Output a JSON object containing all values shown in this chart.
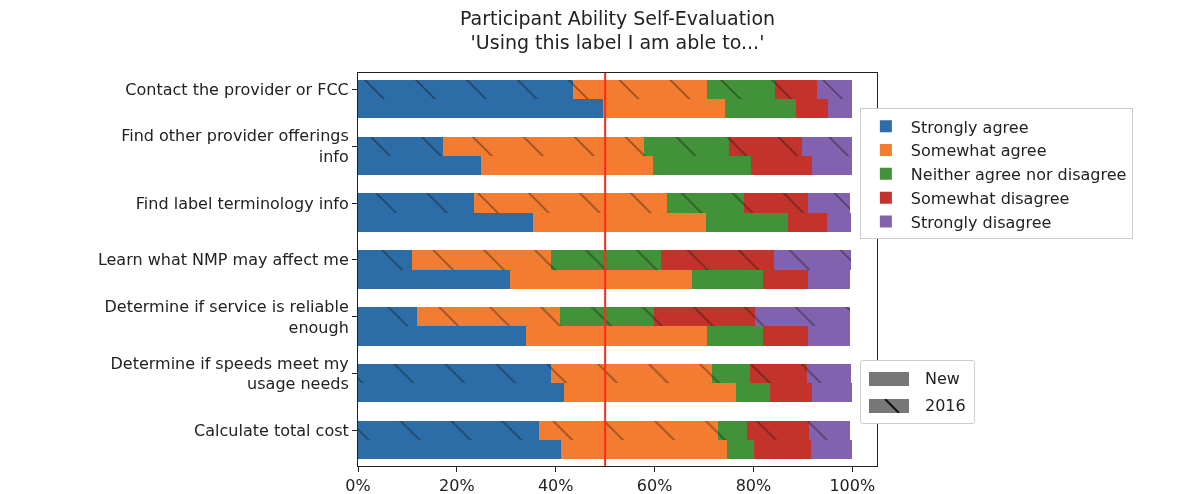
{
  "chart_data": {
    "type": "bar",
    "orientation": "horizontal",
    "stacked": true,
    "title": "Participant Ability Self-Evaluation\n'Using this label I am able to...'",
    "categories": [
      "Contact the provider or FCC",
      null,
      "Find other provider offerings info",
      null,
      "Find label terminology info",
      null,
      "Learn what NMP may affect me",
      null,
      "Determine if service is reliable enough",
      null,
      "Determine if speeds meet my usage needs",
      null,
      "Calculate total cost",
      null
    ],
    "series": [
      {
        "name": "Strongly agree",
        "color": "#2c6da7",
        "values": [
          null,
          49.5,
          null,
          24.9,
          null,
          35.4,
          null,
          30.8,
          null,
          34.0,
          null,
          41.7,
          null,
          41.1
        ]
      },
      {
        "name": "Somewhat agree",
        "color": "#f47c30",
        "values": [
          null,
          24.8,
          null,
          34.7,
          null,
          35.0,
          null,
          36.7,
          null,
          36.7,
          null,
          34.7,
          null,
          33.5
        ]
      },
      {
        "name": "Neither agree nor disagree",
        "color": "#419238",
        "values": [
          null,
          14.4,
          null,
          19.9,
          null,
          16.5,
          null,
          14.4,
          null,
          11.2,
          null,
          7.0,
          null,
          5.5
        ]
      },
      {
        "name": "Somewhat disagree",
        "color": "#c3332b",
        "values": [
          null,
          6.4,
          null,
          12.4,
          null,
          7.9,
          null,
          9.1,
          null,
          9.1,
          null,
          8.5,
          null,
          11.5
        ]
      },
      {
        "name": "Strongly disagree",
        "color": "#8262ae",
        "values": [
          null,
          4.9,
          null,
          8.1,
          null,
          5.0,
          null,
          8.5,
          null,
          8.5,
          null,
          8.1,
          null,
          8.4
        ]
      },
      {
        "color": "#2c6da7",
        "values": [
          43.4,
          null,
          17.2,
          null,
          23.4,
          null,
          11.0,
          null,
          11.9,
          null,
          39.0,
          null,
          36.7,
          null
        ]
      },
      {
        "color": "#f47c30",
        "values": [
          27.3,
          null,
          40.6,
          null,
          39.1,
          null,
          28.0,
          null,
          28.9,
          null,
          32.7,
          null,
          36.1,
          null
        ]
      },
      {
        "color": "#419238",
        "values": [
          13.6,
          null,
          17.3,
          null,
          15.6,
          null,
          22.3,
          null,
          19.0,
          null,
          7.6,
          null,
          5.9,
          null
        ]
      },
      {
        "color": "#c3332b",
        "values": [
          8.6,
          null,
          14.7,
          null,
          12.9,
          null,
          22.9,
          null,
          20.6,
          null,
          11.5,
          null,
          12.6,
          null
        ]
      },
      {
        "color": "#8262ae",
        "values": [
          7.1,
          null,
          10.2,
          null,
          8.5,
          null,
          15.6,
          null,
          19.1,
          null,
          8.9,
          null,
          8.2,
          null
        ]
      }
    ],
    "xlim": [
      0,
      105
    ],
    "xticks": [
      {
        "value": 0,
        "label": "0%"
      },
      {
        "value": 20,
        "label": "20%"
      },
      {
        "value": 40,
        "label": "40%"
      },
      {
        "value": 60,
        "label": "60%"
      },
      {
        "value": 80,
        "label": "80%"
      },
      {
        "value": 100,
        "label": "100%"
      }
    ],
    "ref_lines": [
      {
        "axis": "x",
        "value": 50,
        "color": "#ff2a1a"
      }
    ],
    "legend": "right",
    "annotations": [
      "New",
      "2016"
    ],
    "grid": false
  }
}
